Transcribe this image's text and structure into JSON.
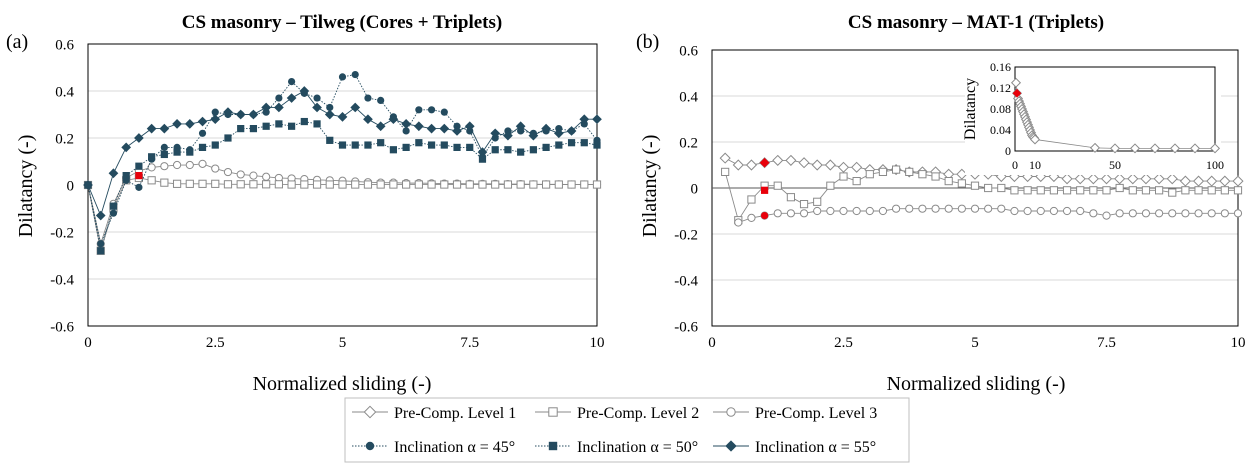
{
  "colors": {
    "dark": "#244b5f",
    "gray": "#8a8a8a",
    "red": "#e8000b",
    "grid": "#d9d9d9",
    "zero": "#595959"
  },
  "legend": {
    "items": [
      {
        "label": "Pre-Comp. Level 1",
        "marker": "diamond-open"
      },
      {
        "label": "Pre-Comp. Level 2",
        "marker": "square-open"
      },
      {
        "label": "Pre-Comp. Level 3",
        "marker": "circle-open"
      },
      {
        "label": "Inclination α = 45°",
        "marker": "circle-filled"
      },
      {
        "label": "Inclination α = 50°",
        "marker": "square-filled"
      },
      {
        "label": "Inclination α = 55°",
        "marker": "diamond-filled"
      }
    ]
  },
  "chart_data": [
    {
      "panel": "(a)",
      "type": "scatter",
      "title": "CS masonry – Tilweg (Cores + Triplets)",
      "xlabel": "Normalized sliding (-)",
      "ylabel": "Dilatancy (-)",
      "xlim": [
        0,
        10
      ],
      "ylim": [
        -0.6,
        0.6
      ],
      "xticks": [
        0,
        2.5,
        5,
        7.5,
        10
      ],
      "xtick_labels": [
        "0",
        "2.5",
        "5",
        "7.5",
        "10"
      ],
      "yticks": [
        -0.6,
        -0.4,
        -0.2,
        0,
        0.2,
        0.4,
        0.6
      ],
      "ytick_labels": [
        "-0.6",
        "-0.4",
        "-0.2",
        "0",
        "0.2",
        "0.4",
        "0.6"
      ],
      "grid": "horizontal",
      "series": [
        {
          "name": "Pre-Comp. Level 3",
          "marker": "circle-open",
          "color": "gray",
          "line": "solid",
          "x": [
            0,
            0.25,
            0.5,
            0.75,
            1,
            1.25,
            1.5,
            1.75,
            2,
            2.25,
            2.5,
            2.75,
            3,
            3.25,
            3.5,
            3.75,
            4,
            4.25,
            4.5,
            4.75,
            5,
            5.25,
            5.5,
            5.75,
            6,
            6.25,
            6.5,
            6.75,
            7,
            7.25,
            7.5,
            7.75,
            8,
            8.25,
            8.5,
            8.75,
            9,
            9.25,
            9.5,
            9.75,
            10
          ],
          "y": [
            0,
            -0.25,
            -0.08,
            0.03,
            0.06,
            0.075,
            0.08,
            0.085,
            0.085,
            0.09,
            0.07,
            0.055,
            0.045,
            0.04,
            0.035,
            0.03,
            0.028,
            0.025,
            0.022,
            0.02,
            0.018,
            0.015,
            0.012,
            0.01,
            0.01,
            0.008,
            0.008,
            0.007,
            0.006,
            0.006,
            0.005,
            0.005,
            0.005,
            0.004,
            0.004,
            0.003,
            0.003,
            0.003,
            0.002,
            0.002,
            0.002
          ]
        },
        {
          "name": "Pre-Comp. Level 2",
          "marker": "square-open",
          "color": "gray",
          "line": "solid",
          "x": [
            0,
            0.25,
            0.5,
            0.75,
            1,
            1.25,
            1.5,
            1.75,
            2,
            2.25,
            2.5,
            2.75,
            3,
            3.25,
            3.5,
            3.75,
            4,
            4.25,
            4.5,
            4.75,
            5,
            5.25,
            5.5,
            5.75,
            6,
            6.25,
            6.5,
            6.75,
            7,
            7.25,
            7.5,
            7.75,
            8,
            8.25,
            8.5,
            8.75,
            9,
            9.25,
            9.5,
            9.75,
            10
          ],
          "y": [
            0,
            -0.28,
            -0.1,
            0.02,
            0.03,
            0.02,
            0.01,
            0.005,
            0.005,
            0.005,
            0.005,
            0.003,
            0.003,
            0.003,
            0.003,
            0.003,
            0.002,
            0.002,
            0.002,
            0.002,
            0.002,
            0.002,
            0.002,
            0.002,
            0.002,
            0.002,
            0.002,
            0.002,
            0.002,
            0.002,
            0.002,
            0.002,
            0.002,
            0.002,
            0.002,
            0.002,
            0.002,
            0.002,
            0.002,
            0.002,
            0.002
          ]
        },
        {
          "name": "Inclination α = 45°",
          "marker": "circle-filled",
          "color": "dark",
          "line": "dotted",
          "x": [
            0,
            0.25,
            0.5,
            0.75,
            1,
            1.25,
            1.5,
            1.75,
            2,
            2.25,
            2.5,
            2.75,
            3,
            3.25,
            3.5,
            3.75,
            4,
            4.25,
            4.5,
            4.75,
            5,
            5.25,
            5.5,
            5.75,
            6,
            6.25,
            6.5,
            6.75,
            7,
            7.25,
            7.5,
            7.75,
            8,
            8.25,
            8.5,
            8.75,
            9,
            9.25,
            9.5,
            9.75,
            10
          ],
          "y": [
            0,
            -0.25,
            -0.12,
            0.02,
            -0.01,
            0.11,
            0.16,
            0.16,
            0.15,
            0.22,
            0.31,
            0.3,
            0.3,
            0.3,
            0.31,
            0.37,
            0.44,
            0.39,
            0.37,
            0.33,
            0.46,
            0.47,
            0.37,
            0.36,
            0.29,
            0.23,
            0.32,
            0.32,
            0.31,
            0.25,
            0.23,
            0.12,
            0.2,
            0.23,
            0.23,
            0.22,
            0.23,
            0.24,
            0.23,
            0.26,
            0.19
          ]
        },
        {
          "name": "Inclination α = 50°",
          "marker": "square-filled",
          "color": "dark",
          "line": "dotted",
          "x": [
            0,
            0.25,
            0.5,
            0.75,
            1,
            1.25,
            1.5,
            1.75,
            2,
            2.25,
            2.5,
            2.75,
            3,
            3.25,
            3.5,
            3.75,
            4,
            4.25,
            4.5,
            4.75,
            5,
            5.25,
            5.5,
            5.75,
            6,
            6.25,
            6.5,
            6.75,
            7,
            7.25,
            7.5,
            7.75,
            8,
            8.25,
            8.5,
            8.75,
            9,
            9.25,
            9.5,
            9.75,
            10
          ],
          "y": [
            0,
            -0.28,
            -0.09,
            0.04,
            0.08,
            0.12,
            0.13,
            0.14,
            0.14,
            0.16,
            0.17,
            0.2,
            0.24,
            0.24,
            0.25,
            0.26,
            0.25,
            0.27,
            0.26,
            0.19,
            0.17,
            0.17,
            0.17,
            0.18,
            0.15,
            0.16,
            0.18,
            0.17,
            0.17,
            0.16,
            0.16,
            0.11,
            0.15,
            0.15,
            0.14,
            0.15,
            0.16,
            0.17,
            0.18,
            0.18,
            0.17
          ]
        },
        {
          "name": "Inclination α = 55°",
          "marker": "diamond-filled",
          "color": "dark",
          "line": "solid",
          "x": [
            0,
            0.25,
            0.5,
            0.75,
            1,
            1.25,
            1.5,
            1.75,
            2,
            2.25,
            2.5,
            2.75,
            3,
            3.25,
            3.5,
            3.75,
            4,
            4.25,
            4.5,
            4.75,
            5,
            5.25,
            5.5,
            5.75,
            6,
            6.25,
            6.5,
            6.75,
            7,
            7.25,
            7.5,
            7.75,
            8,
            8.25,
            8.5,
            8.75,
            9,
            9.25,
            9.5,
            9.75,
            10
          ],
          "y": [
            0,
            -0.13,
            0.05,
            0.16,
            0.2,
            0.24,
            0.24,
            0.26,
            0.26,
            0.27,
            0.28,
            0.31,
            0.3,
            0.3,
            0.33,
            0.33,
            0.37,
            0.4,
            0.33,
            0.3,
            0.29,
            0.33,
            0.28,
            0.25,
            0.28,
            0.26,
            0.25,
            0.24,
            0.24,
            0.23,
            0.25,
            0.14,
            0.22,
            0.21,
            0.25,
            0.21,
            0.24,
            0.22,
            0.23,
            0.28,
            0.28
          ]
        },
        {
          "name": "",
          "marker": "square-filled",
          "color": "red",
          "line": "none",
          "x": [
            1
          ],
          "y": [
            0.04
          ]
        }
      ]
    },
    {
      "panel": "(b)",
      "type": "scatter",
      "title": "CS masonry – MAT-1 (Triplets)",
      "xlabel": "Normalized sliding (-)",
      "ylabel": "Dilatancy (-)",
      "xlim": [
        0,
        10
      ],
      "ylim": [
        -0.6,
        0.6
      ],
      "xticks": [
        0,
        2.5,
        5,
        7.5,
        10
      ],
      "xtick_labels": [
        "0",
        "2.5",
        "5",
        "7.5",
        "10"
      ],
      "yticks": [
        -0.6,
        -0.4,
        -0.2,
        0,
        0.2,
        0.4,
        0.6
      ],
      "ytick_labels": [
        "-0.6",
        "-0.4",
        "-0.2",
        "0",
        "0.2",
        "0.4",
        "0.6"
      ],
      "grid": "horizontal",
      "series": [
        {
          "name": "Pre-Comp. Level 1",
          "marker": "diamond-open",
          "color": "gray",
          "line": "solid",
          "x": [
            0.25,
            0.5,
            0.75,
            1,
            1.25,
            1.5,
            1.75,
            2,
            2.25,
            2.5,
            2.75,
            3,
            3.25,
            3.5,
            3.75,
            4,
            4.25,
            4.5,
            4.75,
            5,
            5.25,
            5.5,
            5.75,
            6,
            6.25,
            6.5,
            6.75,
            7,
            7.25,
            7.5,
            7.75,
            8,
            8.25,
            8.5,
            8.75,
            9,
            9.25,
            9.5,
            9.75,
            10
          ],
          "y": [
            0.13,
            0.1,
            0.1,
            0.11,
            0.12,
            0.12,
            0.11,
            0.1,
            0.1,
            0.09,
            0.09,
            0.08,
            0.08,
            0.08,
            0.07,
            0.07,
            0.07,
            0.06,
            0.06,
            0.06,
            0.06,
            0.05,
            0.05,
            0.05,
            0.05,
            0.05,
            0.04,
            0.04,
            0.04,
            0.04,
            0.04,
            0.04,
            0.04,
            0.04,
            0.04,
            0.03,
            0.03,
            0.03,
            0.03,
            0.03
          ]
        },
        {
          "name": "Pre-Comp. Level 2",
          "marker": "square-open",
          "color": "gray",
          "line": "solid",
          "x": [
            0.25,
            0.5,
            0.75,
            1,
            1.25,
            1.5,
            1.75,
            2,
            2.25,
            2.5,
            2.75,
            3,
            3.25,
            3.5,
            3.75,
            4,
            4.25,
            4.5,
            4.75,
            5,
            5.25,
            5.5,
            5.75,
            6,
            6.25,
            6.5,
            6.75,
            7,
            7.25,
            7.5,
            7.75,
            8,
            8.25,
            8.5,
            8.75,
            9,
            9.25,
            9.5,
            9.75,
            10
          ],
          "y": [
            0.07,
            -0.14,
            -0.05,
            0.01,
            0.01,
            -0.04,
            -0.07,
            -0.06,
            0.01,
            0.05,
            0.03,
            0.06,
            0.07,
            0.08,
            0.07,
            0.06,
            0.05,
            0.03,
            0.02,
            0.01,
            0,
            0,
            -0.01,
            -0.01,
            -0.01,
            -0.01,
            -0.01,
            -0.01,
            -0.01,
            -0.01,
            0,
            -0.01,
            -0.01,
            -0.01,
            -0.02,
            -0.01,
            -0.01,
            -0.01,
            -0.01,
            -0.01
          ]
        },
        {
          "name": "Pre-Comp. Level 3",
          "marker": "circle-open",
          "color": "gray",
          "line": "solid",
          "x": [
            0.5,
            0.75,
            1,
            1.25,
            1.5,
            1.75,
            2,
            2.25,
            2.5,
            2.75,
            3,
            3.25,
            3.5,
            3.75,
            4,
            4.25,
            4.5,
            4.75,
            5,
            5.25,
            5.5,
            5.75,
            6,
            6.25,
            6.5,
            6.75,
            7,
            7.25,
            7.5,
            7.75,
            8,
            8.25,
            8.5,
            8.75,
            9,
            9.25,
            9.5,
            9.75,
            10
          ],
          "y": [
            -0.15,
            -0.13,
            -0.12,
            -0.11,
            -0.11,
            -0.11,
            -0.1,
            -0.1,
            -0.1,
            -0.1,
            -0.1,
            -0.1,
            -0.09,
            -0.09,
            -0.09,
            -0.09,
            -0.09,
            -0.09,
            -0.09,
            -0.09,
            -0.09,
            -0.1,
            -0.1,
            -0.1,
            -0.1,
            -0.1,
            -0.1,
            -0.11,
            -0.12,
            -0.11,
            -0.11,
            -0.11,
            -0.11,
            -0.11,
            -0.11,
            -0.11,
            -0.11,
            -0.11,
            -0.11
          ]
        },
        {
          "name": "",
          "marker": "diamond-filled",
          "color": "red",
          "line": "none",
          "x": [
            1
          ],
          "y": [
            0.11
          ]
        },
        {
          "name": "",
          "marker": "square-filled",
          "color": "red",
          "line": "none",
          "x": [
            1
          ],
          "y": [
            -0.01
          ]
        },
        {
          "name": "",
          "marker": "circle-filled",
          "color": "red",
          "line": "none",
          "x": [
            1
          ],
          "y": [
            -0.12
          ]
        }
      ],
      "inset": {
        "type": "scatter",
        "xlabel": "",
        "ylabel": "Dilatancy",
        "xlim": [
          0,
          100
        ],
        "ylim": [
          0,
          0.16
        ],
        "xticks": [
          0,
          10,
          50,
          100
        ],
        "xtick_labels": [
          "0",
          "10",
          "50",
          "100"
        ],
        "yticks": [
          0,
          0.04,
          0.08,
          0.12,
          0.16
        ],
        "ytick_labels": [
          "0",
          "0.04",
          "0.08",
          "0.12",
          "0.16"
        ],
        "series": [
          {
            "name": "Pre-Comp. Level 1",
            "marker": "diamond-open",
            "color": "gray",
            "line": "solid",
            "x": [
              0.5,
              1,
              1.5,
              2,
              2.5,
              3,
              3.5,
              4,
              4.5,
              5,
              5.5,
              6,
              6.5,
              7,
              7.5,
              8,
              8.5,
              9,
              9.5,
              10,
              40,
              50,
              60,
              70,
              80,
              90,
              100
            ],
            "y": [
              0.13,
              0.11,
              0.1,
              0.095,
              0.09,
              0.085,
              0.08,
              0.075,
              0.07,
              0.065,
              0.06,
              0.055,
              0.05,
              0.045,
              0.04,
              0.035,
              0.03,
              0.027,
              0.025,
              0.022,
              0.006,
              0.005,
              0.005,
              0.005,
              0.005,
              0.005,
              0.005
            ]
          },
          {
            "name": "",
            "marker": "diamond-filled",
            "color": "red",
            "line": "none",
            "x": [
              1
            ],
            "y": [
              0.11
            ]
          }
        ]
      }
    }
  ]
}
